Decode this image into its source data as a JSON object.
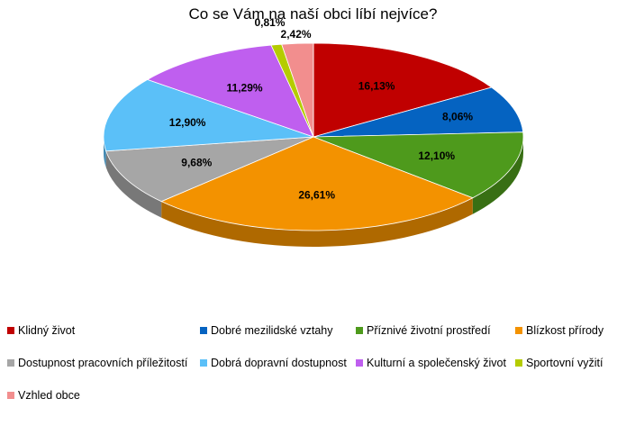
{
  "chart_data": {
    "type": "pie",
    "title": "Co se Vám na naší obci líbí nejvíce?",
    "categories": [
      "Klidný život",
      "Dobré mezilidské vztahy",
      "Příznivé životní prostředí",
      "Blízkost přírody",
      "Dostupnost pracovních příležitostí",
      "Dobrá dopravní dostupnost",
      "Kulturní a společenský život",
      "Sportovní vyžití",
      "Vzhled obce"
    ],
    "values": [
      16.13,
      8.06,
      12.1,
      26.61,
      9.68,
      12.9,
      11.29,
      0.81,
      2.42
    ],
    "data_labels": [
      "16,13%",
      "8,06%",
      "12,10%",
      "26,61%",
      "9,68%",
      "12,90%",
      "11,29%",
      "0,81%",
      "2,42%"
    ],
    "colors": [
      "#C00000",
      "#0563C1",
      "#4E9A1C",
      "#F39200",
      "#A6A6A6",
      "#5BC0F8",
      "#BF5FEF",
      "#B5CC00",
      "#F28E8E"
    ],
    "legend_position": "bottom",
    "style": "3d"
  }
}
